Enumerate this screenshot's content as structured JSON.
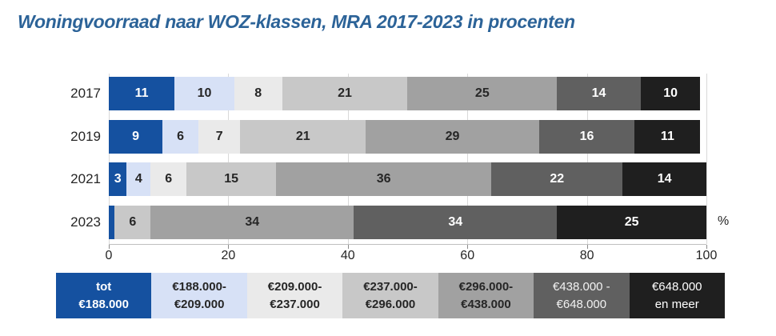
{
  "title": "Woningvoorraad naar WOZ-klassen, MRA 2017-2023 in procenten",
  "chart_data": {
    "type": "bar",
    "variant": "horizontal-stacked",
    "title": "Woningvoorraad naar WOZ-klassen, MRA 2017-2023 in procenten",
    "categories": [
      "2017",
      "2019",
      "2021",
      "2023"
    ],
    "series": [
      {
        "name": "tot €188.000",
        "color": "#1551a0",
        "label_color": "#ffffff",
        "values": [
          11,
          9,
          3,
          1
        ]
      },
      {
        "name": "€188.000-€209.000",
        "color": "#d7e1f6",
        "label_color": "#262626",
        "values": [
          10,
          6,
          4,
          0
        ]
      },
      {
        "name": "€209.000-€237.000",
        "color": "#eaeaea",
        "label_color": "#262626",
        "values": [
          8,
          7,
          6,
          0
        ]
      },
      {
        "name": "€237.000-€296.000",
        "color": "#c8c8c8",
        "label_color": "#262626",
        "values": [
          21,
          21,
          15,
          6
        ]
      },
      {
        "name": "€296.000-€438.000",
        "color": "#a1a1a1",
        "label_color": "#262626",
        "values": [
          25,
          29,
          36,
          34
        ]
      },
      {
        "name": "€438.000 - €648.000",
        "color": "#606060",
        "label_color": "#ffffff",
        "values": [
          14,
          16,
          22,
          34
        ]
      },
      {
        "name": "€648.000 en meer",
        "color": "#1f1f1f",
        "label_color": "#ffffff",
        "values": [
          10,
          11,
          14,
          25
        ]
      }
    ],
    "xlim": [
      0,
      100
    ],
    "x_ticks": [
      0,
      20,
      40,
      60,
      80,
      100
    ],
    "unit_label": "%",
    "grid": "vertical",
    "legend_position": "bottom"
  },
  "axis": {
    "tick_labels": [
      "0",
      "20",
      "40",
      "60",
      "80",
      "100"
    ],
    "unit": "%"
  },
  "legend": {
    "items": [
      {
        "line1": "tot",
        "line2": "€188.000",
        "color": "#1551a0",
        "text_color": "#ffffff",
        "bold": true
      },
      {
        "line1": "€188.000-",
        "line2": "€209.000",
        "color": "#d7e1f6",
        "text_color": "#262626",
        "bold": true
      },
      {
        "line1": "€209.000-",
        "line2": "€237.000",
        "color": "#eaeaea",
        "text_color": "#262626",
        "bold": true
      },
      {
        "line1": "€237.000-",
        "line2": "€296.000",
        "color": "#c8c8c8",
        "text_color": "#262626",
        "bold": true
      },
      {
        "line1": "€296.000-",
        "line2": "€438.000",
        "color": "#a1a1a1",
        "text_color": "#262626",
        "bold": true
      },
      {
        "line1": "€438.000 -",
        "line2": "€648.000",
        "color": "#606060",
        "text_color": "#f2f2f2",
        "bold": false
      },
      {
        "line1": "€648.000",
        "line2": "en meer",
        "color": "#1f1f1f",
        "text_color": "#ffffff",
        "bold": false
      }
    ]
  }
}
